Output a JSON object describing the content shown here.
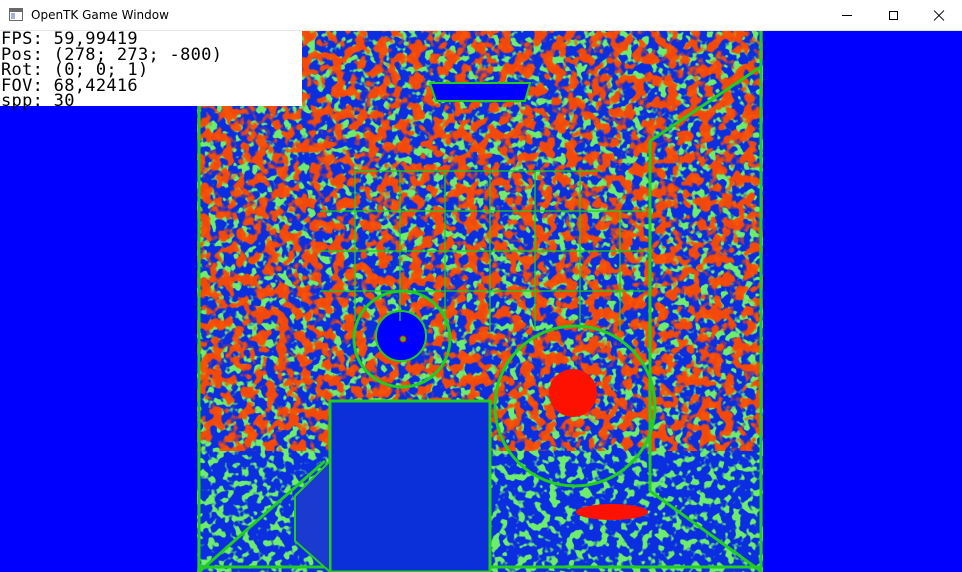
{
  "window": {
    "title": "OpenTK Game Window",
    "icon": "app-window-icon",
    "controls": {
      "minimize": "minimize-icon",
      "maximize": "maximize-icon",
      "close": "close-icon"
    }
  },
  "hud": {
    "lines": [
      "FPS: 59,99419",
      "Pos: (278; 273; -800)",
      "Rot: (0; 0; 1)",
      "FOV: 68,42416",
      "spp: 30"
    ]
  },
  "render": {
    "palette": {
      "background": "#0000ff",
      "green": "#22cc22",
      "red": "#ff1100"
    }
  }
}
